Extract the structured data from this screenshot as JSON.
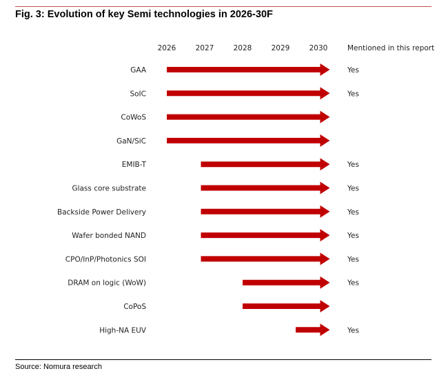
{
  "title": "Fig. 3: Evolution of key Semi technologies in 2026-30F",
  "source": "Source: Nomura research",
  "colors": {
    "arrow": "#c00000",
    "title_rule": "#c0504d"
  },
  "chart_data": {
    "type": "gantt-timeline",
    "title": "Fig. 3: Evolution of key Semi technologies in 2026-30F",
    "years": [
      "2026",
      "2027",
      "2028",
      "2029",
      "2030"
    ],
    "mentioned_header": "Mentioned in this report",
    "xlim": [
      2026,
      2030.3
    ],
    "rows": [
      {
        "label": "GAA",
        "start": 2026,
        "end": 2030.3,
        "mentioned": "Yes"
      },
      {
        "label": "SoIC",
        "start": 2026,
        "end": 2030.3,
        "mentioned": "Yes"
      },
      {
        "label": "CoWoS",
        "start": 2026,
        "end": 2030.3,
        "mentioned": ""
      },
      {
        "label": "GaN/SiC",
        "start": 2026,
        "end": 2030.3,
        "mentioned": ""
      },
      {
        "label": "EMIB-T",
        "start": 2026.9,
        "end": 2030.3,
        "mentioned": "Yes"
      },
      {
        "label": "Glass core substrate",
        "start": 2026.9,
        "end": 2030.3,
        "mentioned": "Yes"
      },
      {
        "label": "Backside Power Delivery",
        "start": 2026.9,
        "end": 2030.3,
        "mentioned": "Yes"
      },
      {
        "label": "Wafer bonded NAND",
        "start": 2026.9,
        "end": 2030.3,
        "mentioned": "Yes"
      },
      {
        "label": "CPO/InP/Photonics SOI",
        "start": 2026.9,
        "end": 2030.3,
        "mentioned": "Yes"
      },
      {
        "label": "DRAM on logic (WoW)",
        "start": 2028,
        "end": 2030.3,
        "mentioned": "Yes"
      },
      {
        "label": "CoPoS",
        "start": 2028,
        "end": 2030.3,
        "mentioned": ""
      },
      {
        "label": "High-NA EUV",
        "start": 2029.4,
        "end": 2030.3,
        "mentioned": "Yes"
      }
    ]
  }
}
